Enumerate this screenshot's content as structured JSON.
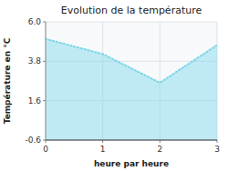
{
  "chart_data": {
    "type": "area",
    "title": "Evolution de la température",
    "xlabel": "heure par heure",
    "ylabel": "Température en °C",
    "x": [
      0,
      1,
      2,
      3
    ],
    "values": [
      5.05,
      4.2,
      2.6,
      4.7
    ],
    "xlim": [
      0,
      3
    ],
    "ylim": [
      -0.6,
      6.0
    ],
    "xticks": [
      0,
      1,
      2,
      3
    ],
    "yticks": [
      -0.6,
      1.6,
      3.8,
      {
        "value": 6.0,
        "label": "6.0"
      }
    ],
    "color": "#7dd6e8",
    "line_style": "dotted",
    "grid": true
  }
}
